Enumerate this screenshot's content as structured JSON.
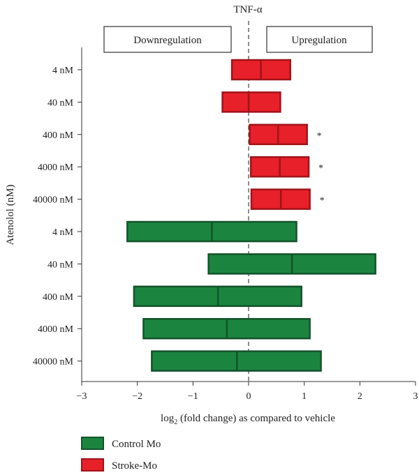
{
  "chart_data": {
    "type": "bar",
    "title": "TNF-α",
    "xlabel_prefix": "log",
    "xlabel_sub": "2",
    "xlabel_suffix": " (fold change) as compared to vehicle",
    "ylabel": "Atenolol (nM)",
    "xlim": [
      -3,
      3
    ],
    "xticks": [
      -3,
      -2,
      -1,
      0,
      1,
      2,
      3
    ],
    "xtick_labels": [
      "−3",
      "−2",
      "−1",
      "0",
      "1",
      "2",
      "3"
    ],
    "regions": {
      "left": "Downregulation",
      "right": "Upregulation"
    },
    "reference_line": 0,
    "categories": [
      "4 nM",
      "40 nM",
      "400 nM",
      "4000 nM",
      "40000 nM",
      "4 nM",
      "40 nM",
      "400 nM",
      "4000 nM",
      "40000 nM"
    ],
    "series": [
      {
        "name": "Stroke-Mo",
        "color": "#e8202a",
        "edge": "#a01319",
        "rows": [
          {
            "category": "4 nM",
            "min": -0.3,
            "mid": 0.22,
            "max": 0.75,
            "significant": false
          },
          {
            "category": "40 nM",
            "min": -0.47,
            "mid": 0.0,
            "max": 0.57,
            "significant": false
          },
          {
            "category": "400 nM",
            "min": 0.02,
            "mid": 0.53,
            "max": 1.05,
            "significant": true
          },
          {
            "category": "4000 nM",
            "min": 0.04,
            "mid": 0.56,
            "max": 1.08,
            "significant": true
          },
          {
            "category": "40000 nM",
            "min": 0.05,
            "mid": 0.58,
            "max": 1.1,
            "significant": true
          }
        ]
      },
      {
        "name": "Control Mo",
        "color": "#1b8540",
        "edge": "#13532a",
        "rows": [
          {
            "category": "4 nM",
            "min": -2.18,
            "mid": -0.66,
            "max": 0.86,
            "significant": false
          },
          {
            "category": "40 nM",
            "min": -0.72,
            "mid": 0.78,
            "max": 2.28,
            "significant": false
          },
          {
            "category": "400 nM",
            "min": -2.06,
            "mid": -0.55,
            "max": 0.95,
            "significant": false
          },
          {
            "category": "4000 nM",
            "min": -1.89,
            "mid": -0.39,
            "max": 1.1,
            "significant": false
          },
          {
            "category": "40000 nM",
            "min": -1.74,
            "mid": -0.21,
            "max": 1.3,
            "significant": false
          }
        ]
      }
    ],
    "significance_marker": "*",
    "legend": [
      {
        "label": "Control Mo",
        "color": "#1b8540",
        "edge": "#13532a"
      },
      {
        "label": "Stroke-Mo",
        "color": "#e8202a",
        "edge": "#a01319"
      }
    ],
    "legend_position": "bottom-left",
    "grid": false
  }
}
